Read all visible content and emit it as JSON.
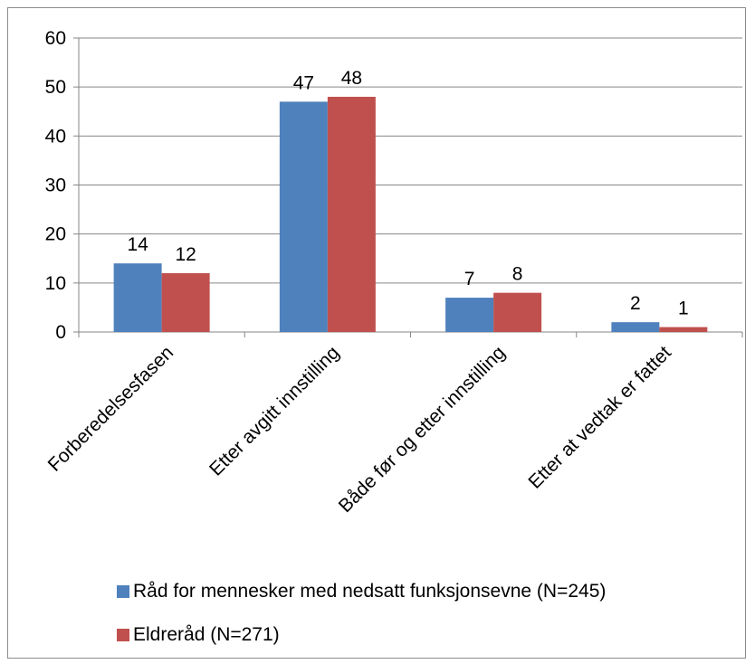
{
  "chart_data": {
    "type": "bar",
    "title": "",
    "xlabel": "",
    "ylabel": "",
    "ylim": [
      0,
      60
    ],
    "yticks": [
      0,
      10,
      20,
      30,
      40,
      50,
      60
    ],
    "grid": true,
    "legend_position": "bottom",
    "categories": [
      "Forberedelsesfasen",
      "Etter avgitt innstilling",
      "Både før og etter innstilling",
      "Etter at vedtak er fattet"
    ],
    "series": [
      {
        "name": "Råd for mennesker med nedsatt funksjonsevne (N=245)",
        "color": "#4F81BD",
        "values": [
          14,
          47,
          7,
          2
        ]
      },
      {
        "name": "Eldreråd (N=271)",
        "color": "#C0504D",
        "values": [
          12,
          48,
          8,
          1
        ]
      }
    ]
  }
}
